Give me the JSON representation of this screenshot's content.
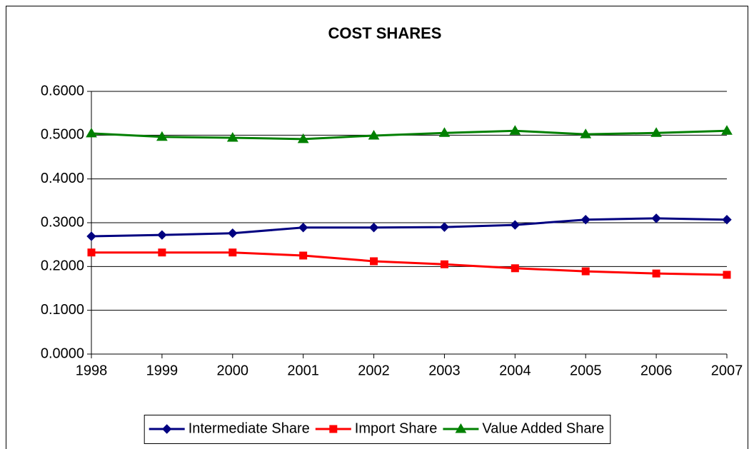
{
  "chart_data": {
    "type": "line",
    "title": "COST SHARES",
    "categories": [
      "1998",
      "1999",
      "2000",
      "2001",
      "2002",
      "2003",
      "2004",
      "2005",
      "2006",
      "2007"
    ],
    "series": [
      {
        "name": "Intermediate Share",
        "color": "#000080",
        "marker": "diamond",
        "values": [
          0.269,
          0.272,
          0.276,
          0.289,
          0.289,
          0.29,
          0.295,
          0.307,
          0.31,
          0.307
        ]
      },
      {
        "name": "Import Share",
        "color": "#ff0000",
        "marker": "square",
        "values": [
          0.232,
          0.232,
          0.232,
          0.225,
          0.212,
          0.205,
          0.196,
          0.189,
          0.184,
          0.181
        ]
      },
      {
        "name": "Value Added Share",
        "color": "#008000",
        "marker": "triangle",
        "values": [
          0.504,
          0.496,
          0.494,
          0.491,
          0.499,
          0.505,
          0.51,
          0.502,
          0.505,
          0.51
        ]
      }
    ],
    "ylim": [
      0,
      0.6
    ],
    "yticks": [
      {
        "value": 0,
        "label": "0.0000"
      },
      {
        "value": 0.1,
        "label": "0.1000"
      },
      {
        "value": 0.2,
        "label": "0.2000"
      },
      {
        "value": 0.3,
        "label": "0.3000"
      },
      {
        "value": 0.4,
        "label": "0.4000"
      },
      {
        "value": 0.5,
        "label": "0.5000"
      },
      {
        "value": 0.6,
        "label": "0.6000"
      }
    ],
    "grid": true,
    "legend": "bottom"
  }
}
